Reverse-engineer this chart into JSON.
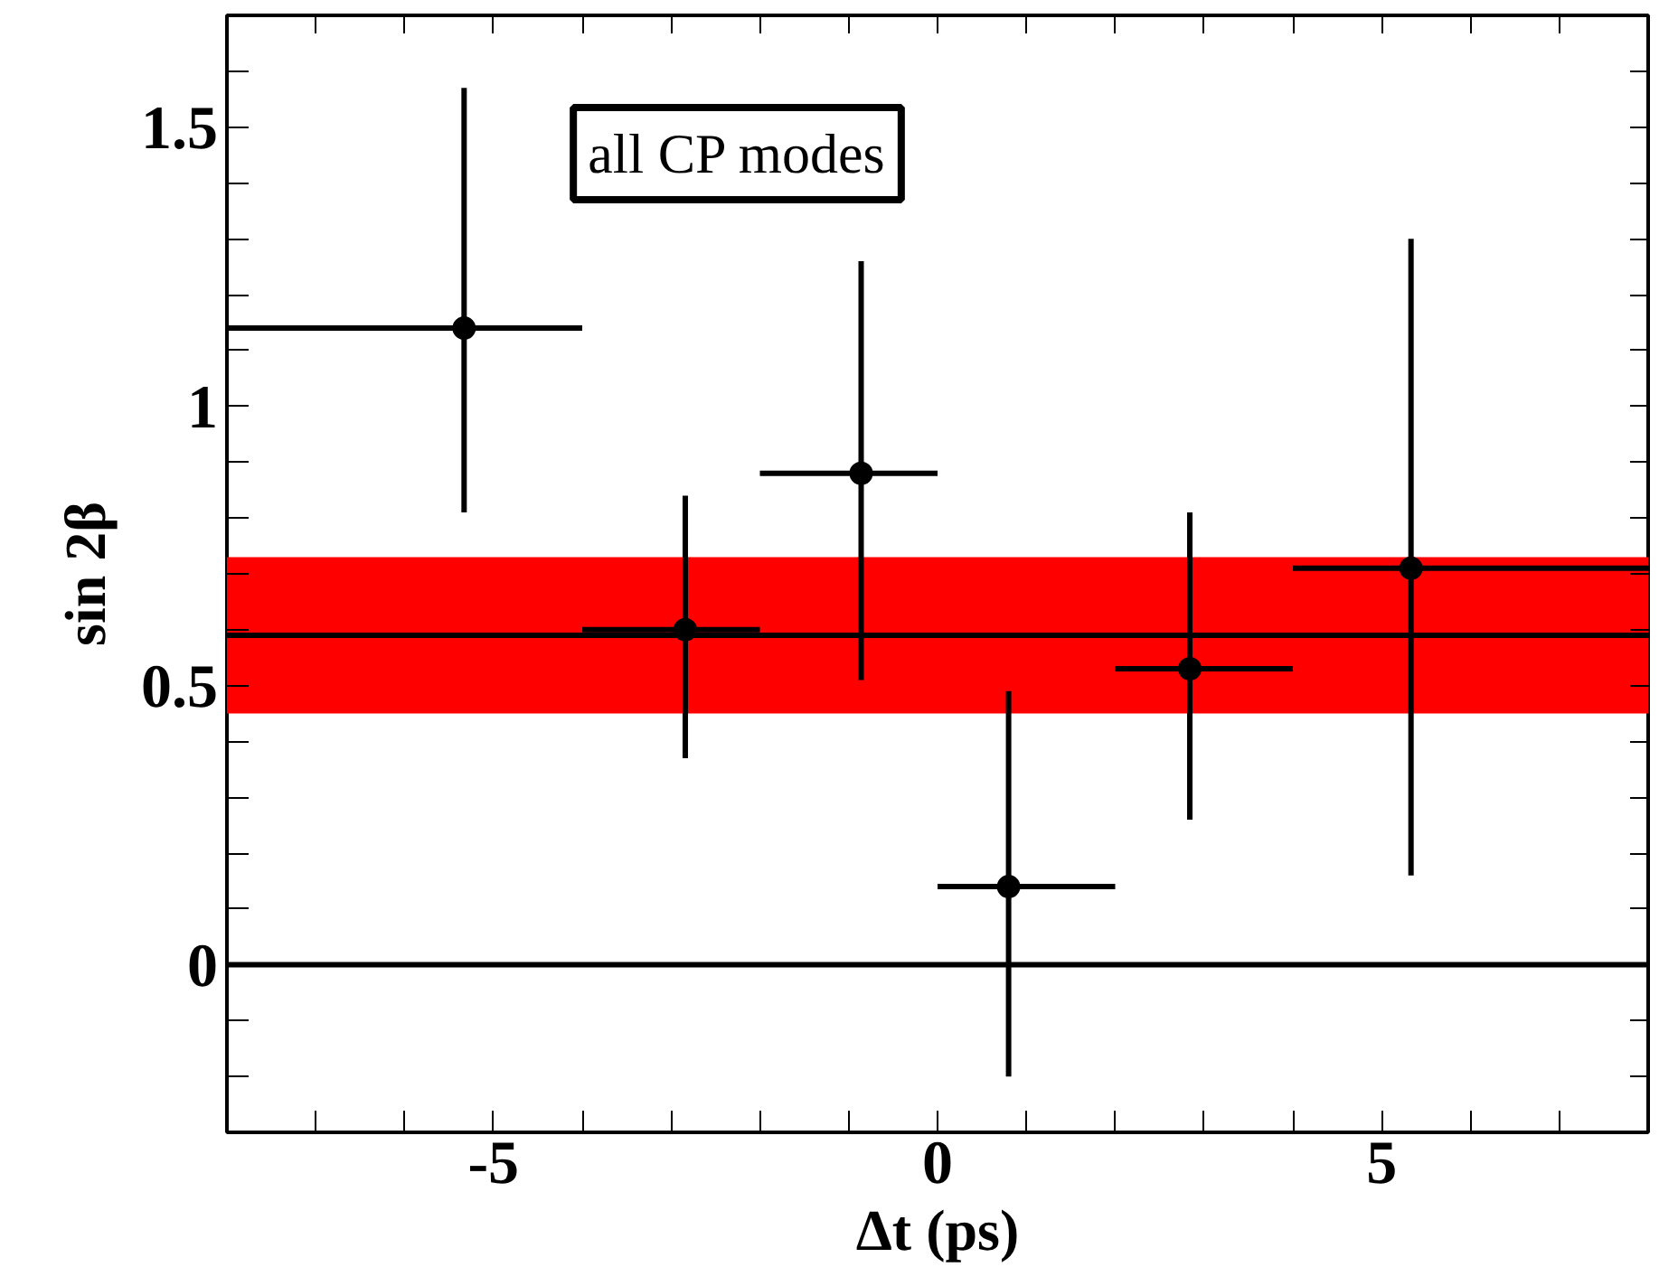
{
  "chart_data": {
    "type": "scatter",
    "xlabel": "Δt (ps)",
    "ylabel": "sin 2β",
    "marker": "circle",
    "grid": false,
    "x": [
      -5.33,
      -2.84,
      -0.86,
      0.8,
      2.84,
      5.33
    ],
    "series": [
      {
        "color": "#000000",
        "values": [
          1.14,
          0.6,
          0.88,
          0.14,
          0.53,
          0.71
        ],
        "errors": [
          [
            0.81,
            1.57
          ],
          [
            0.37,
            0.84
          ],
          [
            0.51,
            1.26
          ],
          [
            -0.2,
            0.49
          ],
          [
            0.26,
            0.81
          ],
          [
            0.16,
            1.3
          ]
        ],
        "xerrors": [
          [
            -8,
            -4
          ],
          [
            -4,
            -2
          ],
          [
            -2,
            0
          ],
          [
            0,
            2
          ],
          [
            2,
            4
          ],
          [
            4,
            8
          ]
        ]
      }
    ],
    "xlim": [
      -8,
      8
    ],
    "ylim": [
      -0.3,
      1.7
    ],
    "xticks": [
      {
        "value": -8,
        "label": null
      },
      {
        "value": -7,
        "label": null
      },
      {
        "value": -6,
        "label": null
      },
      -5,
      {
        "value": -4,
        "label": null
      },
      {
        "value": -3,
        "label": null
      },
      {
        "value": -2,
        "label": null
      },
      {
        "value": -1,
        "label": null
      },
      0,
      {
        "value": 1,
        "label": null
      },
      {
        "value": 2,
        "label": null
      },
      {
        "value": 3,
        "label": null
      },
      {
        "value": 4,
        "label": null
      },
      5,
      {
        "value": 6,
        "label": null
      },
      {
        "value": 7,
        "label": null
      }
    ],
    "yticks": [
      {
        "value": -0.2,
        "label": null
      },
      {
        "value": -0.1,
        "label": null
      },
      0,
      {
        "value": 0.1,
        "label": null
      },
      {
        "value": 0.2,
        "label": null
      },
      {
        "value": 0.3,
        "label": null
      },
      {
        "value": 0.4,
        "label": null
      },
      0.5,
      {
        "value": 0.6,
        "label": null
      },
      {
        "value": 0.7,
        "label": null
      },
      {
        "value": 0.8,
        "label": null
      },
      {
        "value": 0.9,
        "label": null
      },
      1,
      {
        "value": 1.1,
        "label": null
      },
      {
        "value": 1.2,
        "label": null
      },
      {
        "value": 1.3,
        "label": null
      },
      {
        "value": 1.4,
        "label": null
      },
      1.5,
      {
        "value": 1.6,
        "label": null
      }
    ],
    "bands": [
      {
        "axis": "y",
        "from": 0.45,
        "to": 0.73,
        "label": null,
        "color": "#ff0000"
      }
    ],
    "ref_lines": [
      {
        "axis": "y",
        "value": 0.59,
        "label": null,
        "color": "#000000"
      },
      {
        "axis": "y",
        "value": 0,
        "label": null,
        "color": "#000000"
      }
    ],
    "annotations": [
      "all CP modes"
    ]
  }
}
